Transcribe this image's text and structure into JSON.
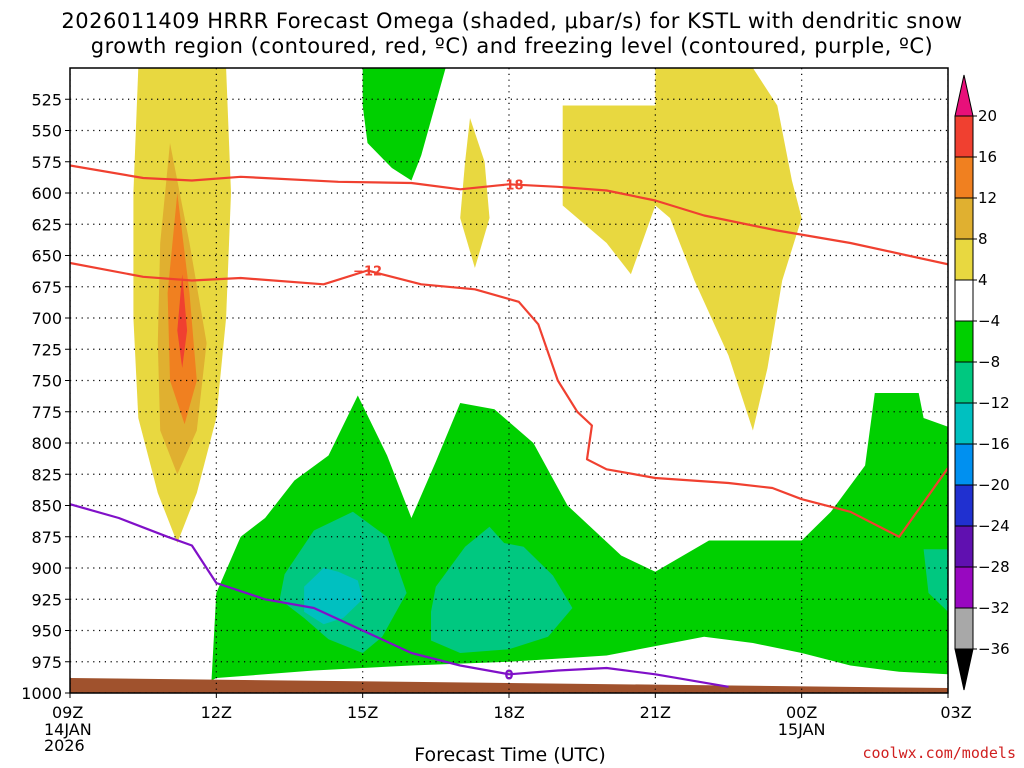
{
  "title_line1": "2026011409 HRRR Forecast Omega (shaded, μbar/s) for KSTL with dendritic snow",
  "title_line2": "growth region (contoured, red, ºC) and freezing level (contoured, purple, ºC)",
  "xlabel": "Forecast Time (UTC)",
  "credit": "coolwx.com/models",
  "chart_data": {
    "type": "heatmap",
    "title": "2026011409 HRRR Forecast Omega (shaded, μbar/s) for KSTL with dendritic snow growth region (contoured, red, ºC) and freezing level (contoured, purple, ºC)",
    "xlabel": "Forecast Time (UTC)",
    "ylabel": "",
    "x_hours_range": [
      0,
      18
    ],
    "ylim": [
      1000,
      500
    ],
    "y_ticks": [
      "525",
      "550",
      "575",
      "600",
      "625",
      "650",
      "675",
      "700",
      "725",
      "750",
      "775",
      "800",
      "825",
      "850",
      "875",
      "900",
      "925",
      "950",
      "975",
      "1000"
    ],
    "x_ticks": [
      {
        "h": 0,
        "label": "09Z",
        "sub": [
          "14JAN",
          "2026"
        ]
      },
      {
        "h": 3,
        "label": "12Z",
        "sub": []
      },
      {
        "h": 6,
        "label": "15Z",
        "sub": []
      },
      {
        "h": 9,
        "label": "18Z",
        "sub": []
      },
      {
        "h": 12,
        "label": "21Z",
        "sub": []
      },
      {
        "h": 15,
        "label": "00Z",
        "sub": [
          "15JAN"
        ]
      },
      {
        "h": 18,
        "label": "03Z",
        "sub": []
      }
    ],
    "grid": true,
    "colorbar": {
      "labels": [
        "20",
        "16",
        "12",
        "8",
        "4",
        "−4",
        "−8",
        "−12",
        "−16",
        "−20",
        "−24",
        "−28",
        "−32",
        "−36"
      ],
      "colors": [
        "#e8107a",
        "#f04030",
        "#f08020",
        "#e0b030",
        "#e8d840",
        "#ffffff",
        "#00d000",
        "#00c880",
        "#00c0c0",
        "#0090f0",
        "#2030d0",
        "#6010b0",
        "#9808c0",
        "#a8a8a8",
        "#000000"
      ]
    },
    "shading": [
      {
        "name": "pos4-a",
        "value": 4,
        "color": "#e8d840",
        "pts": [
          [
            1.4,
            500
          ],
          [
            3.2,
            500
          ],
          [
            3.3,
            600
          ],
          [
            3.2,
            700
          ],
          [
            3.0,
            780
          ],
          [
            2.6,
            840
          ],
          [
            2.2,
            880
          ],
          [
            1.8,
            840
          ],
          [
            1.4,
            780
          ],
          [
            1.3,
            700
          ],
          [
            1.3,
            600
          ]
        ]
      },
      {
        "name": "pos8-a",
        "value": 8,
        "color": "#e0b030",
        "pts": [
          [
            2.05,
            560
          ],
          [
            2.45,
            640
          ],
          [
            2.8,
            720
          ],
          [
            2.6,
            790
          ],
          [
            2.2,
            825
          ],
          [
            1.85,
            790
          ],
          [
            1.8,
            720
          ],
          [
            1.85,
            640
          ]
        ]
      },
      {
        "name": "pos12-a",
        "value": 12,
        "color": "#f08020",
        "pts": [
          [
            2.2,
            600
          ],
          [
            2.45,
            680
          ],
          [
            2.6,
            750
          ],
          [
            2.35,
            785
          ],
          [
            2.05,
            750
          ],
          [
            2.0,
            680
          ]
        ]
      },
      {
        "name": "pos16-a",
        "value": 16,
        "color": "#f04030",
        "pts": [
          [
            2.3,
            665
          ],
          [
            2.4,
            710
          ],
          [
            2.3,
            740
          ],
          [
            2.2,
            710
          ]
        ]
      },
      {
        "name": "neg4-top",
        "value": -4,
        "color": "#00d000",
        "pts": [
          [
            6.0,
            500
          ],
          [
            7.7,
            500
          ],
          [
            7.2,
            570
          ],
          [
            7.0,
            590
          ],
          [
            6.6,
            580
          ],
          [
            6.1,
            560
          ],
          [
            6.0,
            530
          ]
        ]
      },
      {
        "name": "pos4-b",
        "value": 4,
        "color": "#e8d840",
        "pts": [
          [
            8.2,
            540
          ],
          [
            8.5,
            575
          ],
          [
            8.6,
            620
          ],
          [
            8.3,
            660
          ],
          [
            8.0,
            620
          ],
          [
            8.1,
            575
          ]
        ]
      },
      {
        "name": "pos4-c",
        "value": 4,
        "color": "#e8d840",
        "pts": [
          [
            10.1,
            530
          ],
          [
            12.0,
            530
          ],
          [
            12.0,
            500
          ],
          [
            14.0,
            500
          ],
          [
            14.5,
            530
          ],
          [
            14.8,
            590
          ],
          [
            15.0,
            620
          ],
          [
            14.6,
            670
          ],
          [
            14.3,
            740
          ],
          [
            14.0,
            790
          ],
          [
            13.5,
            730
          ],
          [
            12.8,
            670
          ],
          [
            12.3,
            620
          ],
          [
            12.0,
            610
          ],
          [
            11.5,
            665
          ],
          [
            11.0,
            640
          ],
          [
            10.1,
            610
          ]
        ]
      },
      {
        "name": "neg4-low",
        "value": -4,
        "color": "#00d000",
        "pts": [
          [
            2.9,
            990
          ],
          [
            3.0,
            920
          ],
          [
            3.5,
            875
          ],
          [
            4.0,
            860
          ],
          [
            4.6,
            830
          ],
          [
            5.3,
            810
          ],
          [
            5.9,
            762
          ],
          [
            6.5,
            810
          ],
          [
            7.0,
            860
          ],
          [
            7.5,
            815
          ],
          [
            8.0,
            768
          ],
          [
            8.7,
            773
          ],
          [
            9.5,
            800
          ],
          [
            10.2,
            850
          ],
          [
            11.3,
            890
          ],
          [
            12.0,
            903
          ],
          [
            13.1,
            878
          ],
          [
            15.0,
            878
          ],
          [
            15.6,
            855
          ],
          [
            16.3,
            818
          ],
          [
            16.5,
            760
          ],
          [
            17.4,
            760
          ],
          [
            17.5,
            780
          ],
          [
            18.0,
            787
          ],
          [
            18.0,
            985
          ],
          [
            17.0,
            983
          ],
          [
            16.0,
            978
          ],
          [
            15.0,
            968
          ],
          [
            14.0,
            960
          ],
          [
            13.0,
            955
          ],
          [
            11.0,
            970
          ],
          [
            9.0,
            975
          ],
          [
            7.0,
            978
          ],
          [
            5.0,
            982
          ],
          [
            4.0,
            985
          ],
          [
            3.0,
            988
          ]
        ]
      },
      {
        "name": "neg8-a",
        "value": -8,
        "color": "#00c880",
        "pts": [
          [
            4.4,
            905
          ],
          [
            5.0,
            870
          ],
          [
            5.8,
            855
          ],
          [
            6.5,
            875
          ],
          [
            6.9,
            920
          ],
          [
            6.4,
            955
          ],
          [
            6.0,
            968
          ],
          [
            5.3,
            957
          ],
          [
            4.8,
            940
          ],
          [
            4.3,
            925
          ]
        ]
      },
      {
        "name": "neg8-b",
        "value": -8,
        "color": "#00c880",
        "pts": [
          [
            7.5,
            915
          ],
          [
            8.1,
            883
          ],
          [
            8.6,
            867
          ],
          [
            8.9,
            880
          ],
          [
            9.3,
            883
          ],
          [
            9.9,
            906
          ],
          [
            10.3,
            932
          ],
          [
            9.8,
            955
          ],
          [
            9.0,
            965
          ],
          [
            8.0,
            968
          ],
          [
            7.4,
            958
          ],
          [
            7.4,
            935
          ]
        ]
      },
      {
        "name": "neg12-a",
        "value": -12,
        "color": "#00c0c0",
        "pts": [
          [
            4.8,
            915
          ],
          [
            5.2,
            900
          ],
          [
            5.5,
            903
          ],
          [
            5.9,
            910
          ],
          [
            6.0,
            925
          ],
          [
            5.6,
            940
          ],
          [
            5.2,
            945
          ],
          [
            4.8,
            935
          ]
        ]
      },
      {
        "name": "neg8-c",
        "value": -8,
        "color": "#00c880",
        "pts": [
          [
            17.5,
            885
          ],
          [
            18.0,
            885
          ],
          [
            18.0,
            935
          ],
          [
            17.6,
            920
          ]
        ]
      }
    ],
    "contours": [
      {
        "label": "-18",
        "color": "#f04030",
        "label_at": [
          9.0,
          593
        ],
        "pts": [
          [
            0,
            578
          ],
          [
            1.5,
            588
          ],
          [
            2.5,
            590
          ],
          [
            3.5,
            587
          ],
          [
            5.5,
            591
          ],
          [
            7.0,
            592
          ],
          [
            8.0,
            597
          ],
          [
            9.0,
            593
          ],
          [
            10.0,
            595
          ],
          [
            11.0,
            598
          ],
          [
            12.0,
            606
          ],
          [
            13.0,
            618
          ],
          [
            14.5,
            630
          ],
          [
            16.0,
            640
          ],
          [
            18.0,
            657
          ]
        ]
      },
      {
        "label": "-12",
        "color": "#f04030",
        "label_at": [
          6.1,
          662
        ],
        "pts": [
          [
            0,
            656
          ],
          [
            1.5,
            667
          ],
          [
            2.5,
            670
          ],
          [
            3.5,
            668
          ],
          [
            5.2,
            673
          ],
          [
            6.1,
            662
          ],
          [
            7.2,
            673
          ],
          [
            8.3,
            677
          ],
          [
            9.2,
            687
          ],
          [
            9.6,
            705
          ],
          [
            10.0,
            750
          ],
          [
            10.4,
            775
          ],
          [
            10.7,
            786
          ],
          [
            10.6,
            813
          ],
          [
            11.0,
            821
          ],
          [
            12.0,
            828
          ],
          [
            13.5,
            832
          ],
          [
            14.4,
            836
          ],
          [
            15.0,
            845
          ],
          [
            16.0,
            855
          ],
          [
            17.0,
            875
          ],
          [
            18.0,
            820
          ]
        ]
      },
      {
        "label": "0",
        "color": "#8010c8",
        "label_at": [
          9.0,
          985
        ],
        "pts": [
          [
            0,
            849
          ],
          [
            1.0,
            860
          ],
          [
            2.0,
            875
          ],
          [
            2.5,
            882
          ],
          [
            3.0,
            912
          ],
          [
            4.0,
            925
          ],
          [
            5.0,
            932
          ],
          [
            6.0,
            950
          ],
          [
            7.0,
            968
          ],
          [
            8.0,
            978
          ],
          [
            9.0,
            985
          ],
          [
            10.0,
            982
          ],
          [
            11.0,
            980
          ],
          [
            12.0,
            985
          ],
          [
            13.5,
            995
          ]
        ]
      }
    ],
    "terrain": {
      "color": "#a0522d",
      "top_left": 988,
      "top_right": 996
    }
  }
}
